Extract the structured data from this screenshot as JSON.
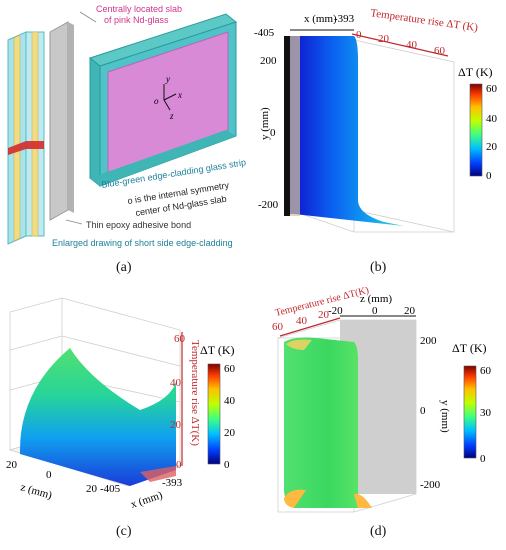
{
  "panel_a": {
    "callout_pink": [
      "Centrally located slab",
      "of pink Nd-glass"
    ],
    "callout_blue": "Blue-green edge-cladding glass strip",
    "callout_origin": [
      "o is the internal symmetry",
      "center of Nd-glass slab"
    ],
    "callout_epoxy": "Thin epoxy adhesive bond",
    "callout_enlarged": "Enlarged drawing of short side edge-cladding",
    "axis_y": "y",
    "axis_x": "x",
    "axis_z": "z",
    "axis_o": "o",
    "caption": "(a)"
  },
  "panel_b": {
    "x_label": "x (mm)",
    "x_ticks": [
      "-405",
      "-393"
    ],
    "top_label": "Temperature rise ΔT (K)",
    "top_ticks": [
      "0",
      "20",
      "40",
      "60"
    ],
    "y_label": "y (mm)",
    "y_ticks": [
      "200",
      "0",
      "-200"
    ],
    "colorbar_title": "ΔT (K)",
    "colorbar_ticks": [
      "60",
      "40",
      "20",
      "0"
    ],
    "caption": "(b)"
  },
  "panel_c": {
    "z_label": "z (mm)",
    "z_ticks": [
      "20",
      "0",
      "20"
    ],
    "x_label": "x (mm)",
    "x_ticks": [
      "-405",
      "-393"
    ],
    "vertical_label": "Temperature rise ΔT(K)",
    "vertical_ticks": [
      "60",
      "40",
      "20",
      "0"
    ],
    "colorbar_title": "ΔT (K)",
    "colorbar_ticks": [
      "60",
      "40",
      "20",
      "0"
    ],
    "caption": "(c)"
  },
  "panel_d": {
    "top_label": "Temperature rise ΔT(K)",
    "top_ticks": [
      "60",
      "40",
      "20"
    ],
    "z_label": "z (mm)",
    "z_ticks": [
      "-20",
      "0",
      "20"
    ],
    "y_label": "y (mm)",
    "y_ticks": [
      "200",
      "0",
      "-200"
    ],
    "colorbar_title": "ΔT (K)",
    "colorbar_ticks": [
      "60",
      "30",
      "0"
    ],
    "caption": "(d)"
  },
  "colors": {
    "pink_glass": "#d98ad6",
    "cladding": "#4fc3c8",
    "accent_red": "#c0282c",
    "colormap": [
      "#00007f",
      "#0040ff",
      "#00c0ff",
      "#40ff80",
      "#c0ff00",
      "#ffc000",
      "#ff4000",
      "#7f0000"
    ]
  }
}
